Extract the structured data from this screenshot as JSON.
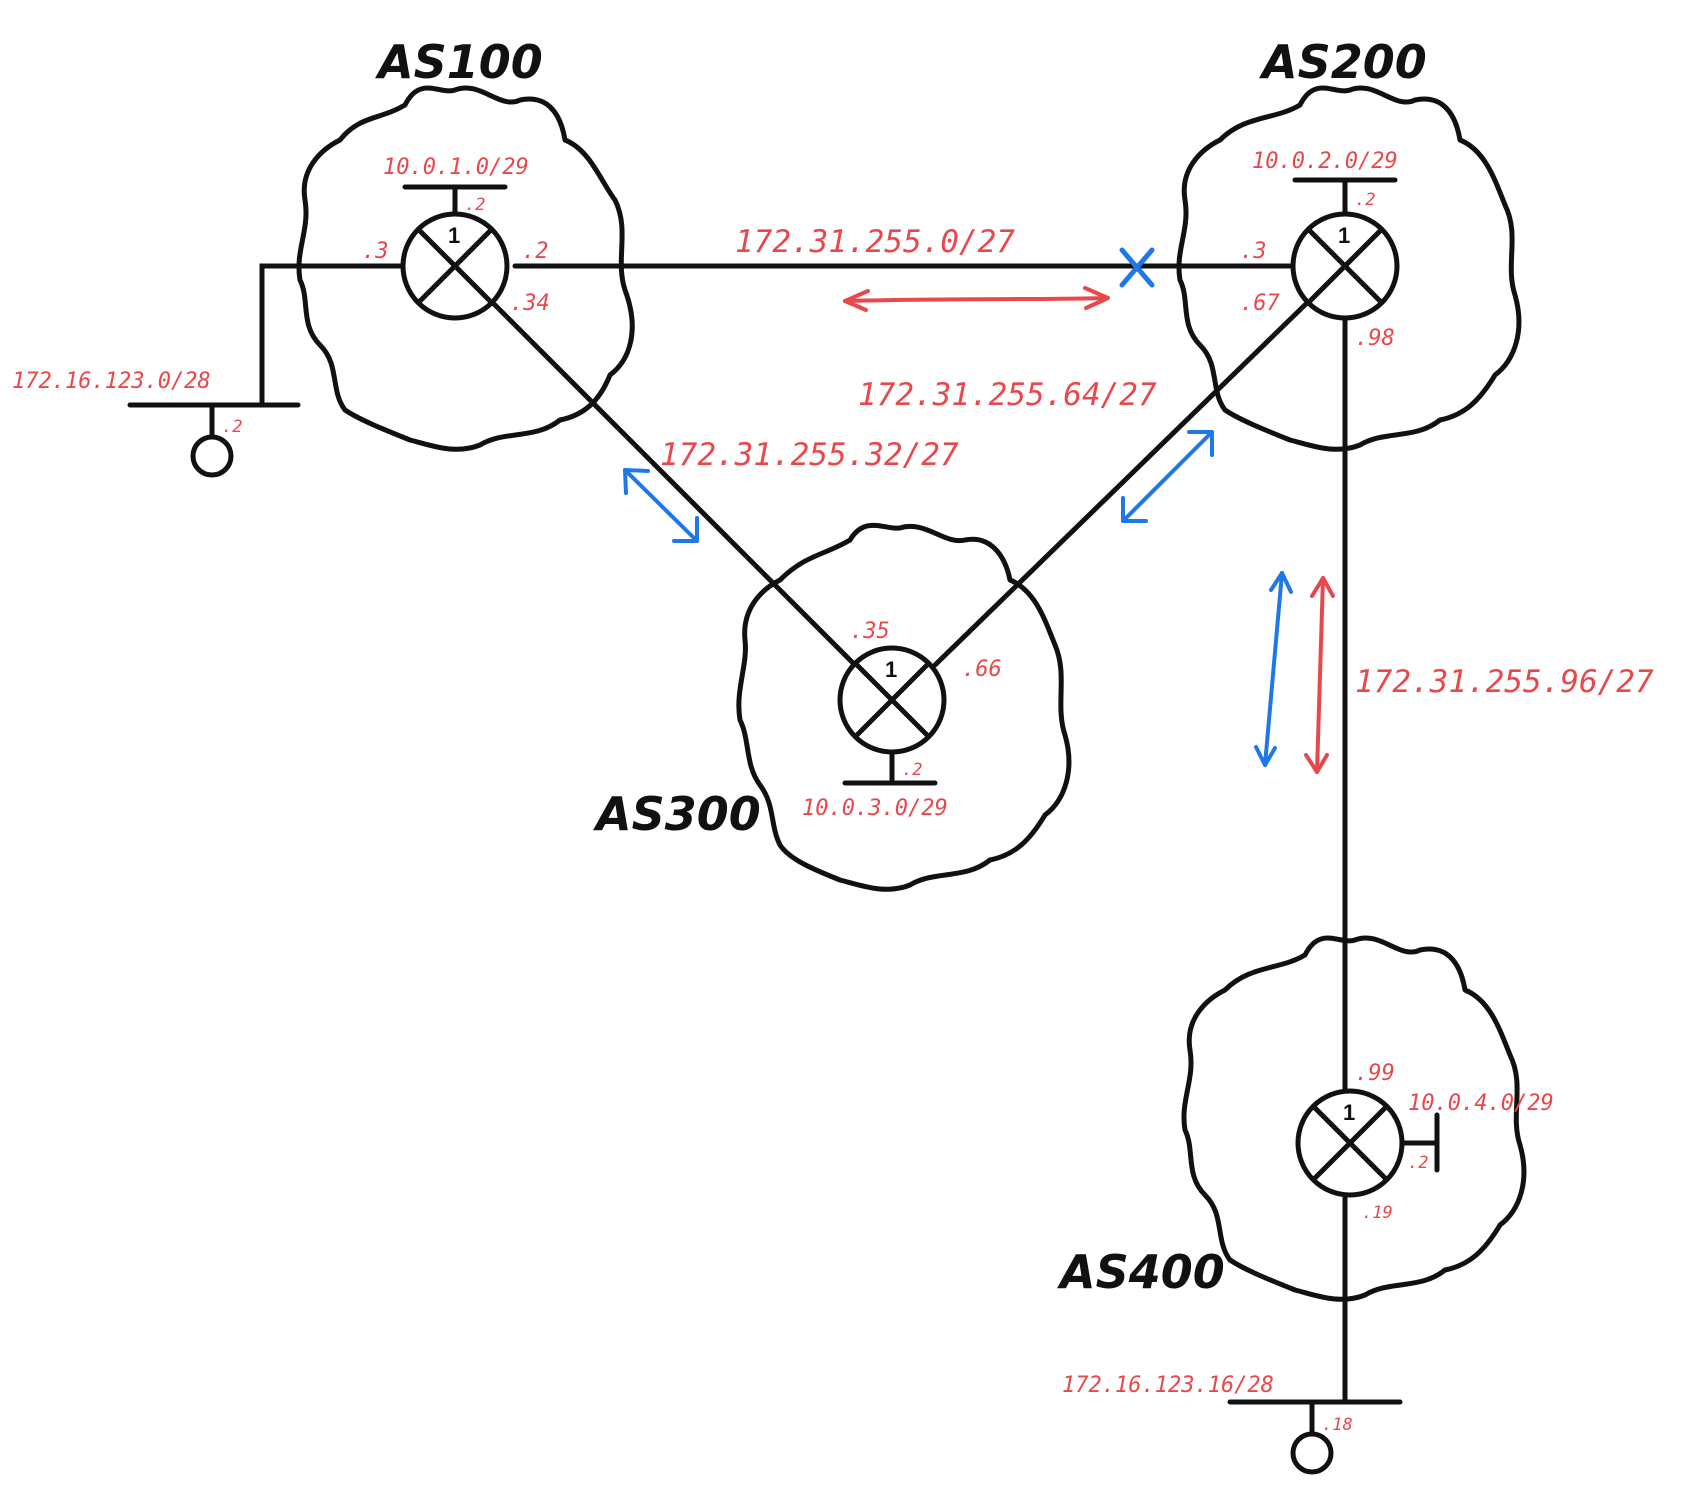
{
  "as_labels": {
    "as100": "AS100",
    "as200": "AS200",
    "as300": "AS300",
    "as400": "AS400"
  },
  "router_ids": {
    "r1": "1",
    "r2": "1",
    "r3": "1",
    "r4": "1"
  },
  "networks": {
    "lan_as100": "10.0.1.0/29",
    "lan_as200": "10.0.2.0/29",
    "lan_as300": "10.0.3.0/29",
    "lan_as400": "10.0.4.0/29",
    "link_as100_as200": "172.31.255.0/27",
    "link_as100_as300": "172.31.255.32/27",
    "link_as200_as300": "172.31.255.64/27",
    "link_as200_as400": "172.31.255.96/27",
    "stub_left": "172.16.123.0/28",
    "stub_bottom": "172.16.123.16/28"
  },
  "interfaces": {
    "r1_lan": ".2",
    "r1_left": ".3",
    "r1_to_r2": ".2",
    "r1_to_r3": ".34",
    "r2_lan": ".2",
    "r2_to_r1": ".3",
    "r2_to_r3": ".67",
    "r2_to_r4": ".98",
    "r3_to_r1": ".35",
    "r3_to_r2": ".66",
    "r3_lan": ".2",
    "r4_to_r2": ".99",
    "r4_lan": ".2",
    "r4_bottom": ".19",
    "host_left": ".2",
    "host_bottom": ".18"
  },
  "colors": {
    "ink": "#111111",
    "red_annotation": "#e8484c",
    "blue_annotation": "#1f78e8"
  }
}
